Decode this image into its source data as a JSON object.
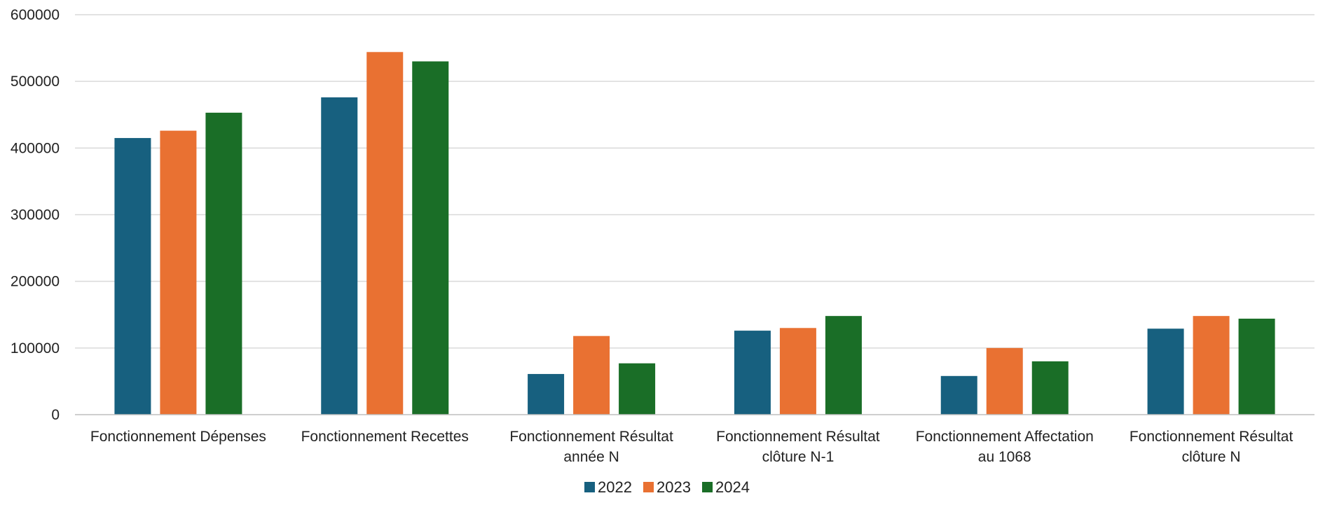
{
  "chart_data": {
    "type": "bar",
    "title": "",
    "xlabel": "",
    "ylabel": "",
    "ylim": [
      0,
      600000
    ],
    "yticks": [
      "0",
      "100000",
      "200000",
      "300000",
      "400000",
      "500000",
      "600000"
    ],
    "grid": true,
    "legend_position": "bottom",
    "categories": [
      [
        "Fonctionnement Dépenses"
      ],
      [
        "Fonctionnement Recettes"
      ],
      [
        "Fonctionnement Résultat",
        "année N"
      ],
      [
        "Fonctionnement Résultat",
        "clôture N-1"
      ],
      [
        "Fonctionnement Affectation",
        "au 1068"
      ],
      [
        "Fonctionnement Résultat",
        "clôture N"
      ]
    ],
    "series": [
      {
        "name": "2022",
        "color": "#17607f",
        "values": [
          415000,
          476000,
          61000,
          126000,
          58000,
          129000
        ]
      },
      {
        "name": "2023",
        "color": "#e97132",
        "values": [
          426000,
          544000,
          118000,
          130000,
          100000,
          148000
        ]
      },
      {
        "name": "2024",
        "color": "#1a6e27",
        "values": [
          453000,
          530000,
          77000,
          148000,
          80000,
          144000
        ]
      }
    ]
  }
}
